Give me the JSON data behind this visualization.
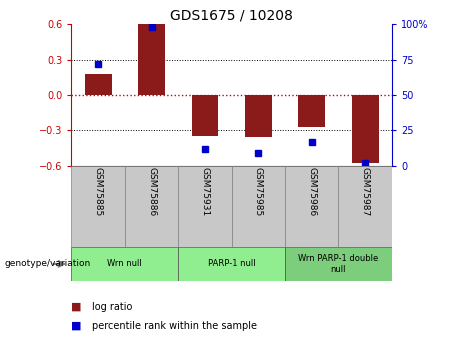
{
  "title": "GDS1675 / 10208",
  "samples": [
    "GSM75885",
    "GSM75886",
    "GSM75931",
    "GSM75985",
    "GSM75986",
    "GSM75987"
  ],
  "log_ratio": [
    0.18,
    0.6,
    -0.35,
    -0.36,
    -0.27,
    -0.58
  ],
  "percentile_rank": [
    72,
    98,
    12,
    9,
    17,
    2
  ],
  "bar_color": "#8B1A1A",
  "dot_color": "#0000CC",
  "groups": [
    {
      "label": "Wrn null",
      "start": 0,
      "end": 2,
      "color": "#90EE90"
    },
    {
      "label": "PARP-1 null",
      "start": 2,
      "end": 4,
      "color": "#90EE90"
    },
    {
      "label": "Wrn PARP-1 double\nnull",
      "start": 4,
      "end": 6,
      "color": "#7CCD7C"
    }
  ],
  "ylim_left": [
    -0.6,
    0.6
  ],
  "ylim_right": [
    0,
    100
  ],
  "yticks_left": [
    -0.6,
    -0.3,
    0.0,
    0.3,
    0.6
  ],
  "yticks_right": [
    0,
    25,
    50,
    75,
    100
  ],
  "ytick_labels_right": [
    "0",
    "25",
    "50",
    "75",
    "100%"
  ],
  "hline_color": "#CC0000",
  "grid_color": "#000000",
  "genotype_label": "genotype/variation",
  "legend_log_ratio": "log ratio",
  "legend_percentile": "percentile rank within the sample",
  "bar_width": 0.5,
  "tick_label_color_left": "#CC0000",
  "tick_label_color_right": "#0000CC",
  "sample_cell_color": "#C8C8C8",
  "cell_edge_color": "#808080"
}
